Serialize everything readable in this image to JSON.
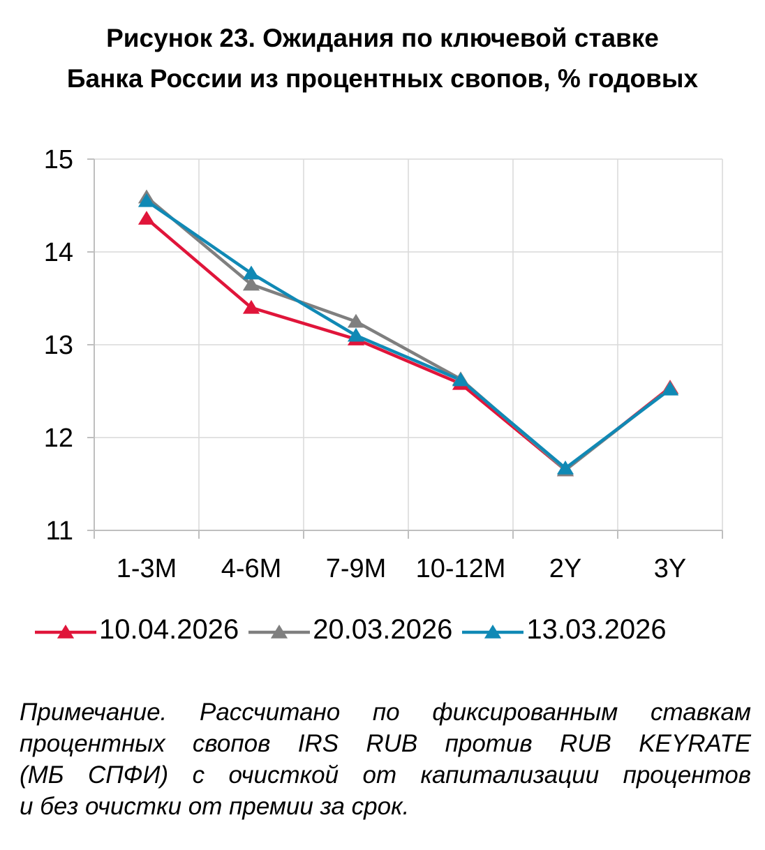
{
  "chart_data": {
    "type": "line",
    "title": "Рисунок 23. Ожидания по ключевой ставке Банка России из процентных свопов, % годовых",
    "title_lines": [
      "Рисунок 23. Ожидания по ключевой ставке",
      "Банка России из процентных свопов, % годовых"
    ],
    "categories": [
      "1-3M",
      "4-6M",
      "7-9M",
      "10-12M",
      "2Y",
      "3Y"
    ],
    "ylim": [
      11,
      15
    ],
    "yticks": [
      "11",
      "12",
      "13",
      "14",
      "15"
    ],
    "grid": true,
    "legend_position": "bottom",
    "series": [
      {
        "name": "10.04.2026",
        "color": "#e0153a",
        "values": [
          14.36,
          13.4,
          13.06,
          12.58,
          11.65,
          12.54
        ]
      },
      {
        "name": "20.03.2026",
        "color": "#7f7f7f",
        "values": [
          14.59,
          13.65,
          13.25,
          12.63,
          11.65,
          12.53
        ]
      },
      {
        "name": "13.03.2026",
        "color": "#1089b5",
        "values": [
          14.55,
          13.77,
          13.1,
          12.62,
          11.67,
          12.52
        ]
      }
    ]
  },
  "note_lines": [
    "Примечание. Рассчитано по фиксированным ставкам",
    "процентных свопов IRS RUB против RUB KEYRATE",
    "(МБ СПФИ) с очисткой от капитализации процентов",
    "и без очистки от премии за срок."
  ]
}
